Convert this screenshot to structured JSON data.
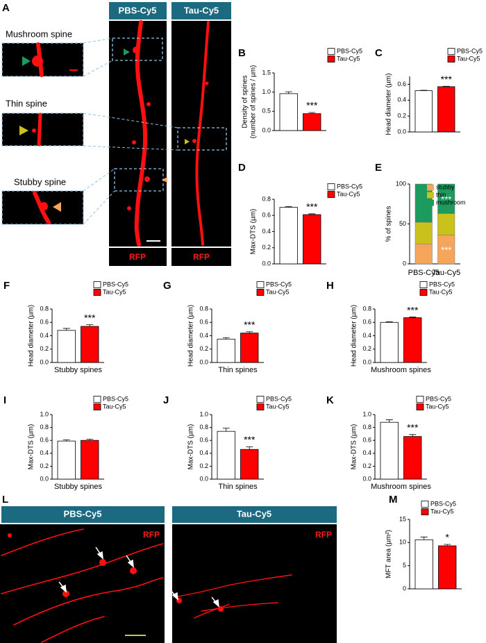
{
  "figure": {
    "panel_letters": [
      "A",
      "B",
      "C",
      "D",
      "E",
      "F",
      "G",
      "H",
      "I",
      "J",
      "K",
      "L",
      "M"
    ],
    "panel_a": {
      "headers": [
        "PBS-Cy5",
        "Tau-Cy5"
      ],
      "channel_labels": [
        "RFP",
        "RFP"
      ],
      "inset_labels": [
        "Mushroom spine",
        "Thin spine",
        "Stubby spine"
      ]
    },
    "panel_l": {
      "headers": [
        "PBS-Cy5",
        "Tau-Cy5"
      ],
      "channel_labels": [
        "RFP",
        "RFP"
      ]
    }
  },
  "chart_data": [
    {
      "type": "bar",
      "y_label": [
        "Density of spines",
        "(number of spines / µm)"
      ],
      "categories": [
        "PBS-Cy5",
        "Tau-Cy5"
      ],
      "colors": [
        "#ffffff",
        "#ff0000"
      ],
      "values": [
        0.96,
        0.44
      ],
      "errors": [
        0.05,
        0.03
      ],
      "annotation": "***",
      "ylim": [
        0,
        1.5
      ],
      "yticks": [
        {
          "value": 0,
          "label": "0.0"
        },
        {
          "value": 0.5,
          "label": "0.5"
        },
        {
          "value": 1,
          "label": "1.0"
        },
        {
          "value": 1.5,
          "label": "1.5"
        }
      ]
    },
    {
      "type": "bar",
      "y_label": [
        "Head diameter (µm)"
      ],
      "categories": [
        "PBS-Cy5",
        "Tau-Cy5"
      ],
      "colors": [
        "#ffffff",
        "#ff0000"
      ],
      "values": [
        0.52,
        0.57
      ],
      "errors": [
        0.005,
        0.005
      ],
      "annotation": "***",
      "ylim": [
        0,
        0.7
      ],
      "yticks": [
        {
          "value": 0,
          "label": "0.0"
        },
        0.2,
        0.4,
        0.6
      ]
    },
    {
      "type": "bar",
      "y_label": [
        "Max-DTS (µm)"
      ],
      "categories": [
        "PBS-Cy5",
        "Tau-Cy5"
      ],
      "colors": [
        "#ffffff",
        "#ff0000"
      ],
      "values": [
        0.7,
        0.61
      ],
      "errors": [
        0.01,
        0.01
      ],
      "annotation": "***",
      "ylim": [
        0,
        0.8
      ],
      "yticks": [
        {
          "value": 0,
          "label": "0.0"
        },
        0.2,
        0.4,
        0.6,
        0.8
      ]
    },
    {
      "type": "stacked_bar",
      "y_label": [
        "% of spines"
      ],
      "categories": [
        "PBS-Cy5",
        "Tau-Cy5"
      ],
      "series": [
        {
          "name": "stubby",
          "color": "#f5a65b",
          "values": [
            25,
            36
          ],
          "annotation": "***"
        },
        {
          "name": "thin",
          "color": "#c9c21c",
          "values": [
            27,
            27
          ]
        },
        {
          "name": "mushroom",
          "color": "#1d9a5e",
          "values": [
            48,
            37
          ],
          "annotation": "***"
        }
      ],
      "ylim": [
        0,
        100
      ],
      "yticks": [
        0,
        50,
        100
      ]
    },
    {
      "type": "bar",
      "y_label": [
        "Head diameter (µm)"
      ],
      "x_label": "Stubby spines",
      "categories": [
        "PBS-Cy5",
        "Tau-Cy5"
      ],
      "colors": [
        "#ffffff",
        "#ff0000"
      ],
      "values": [
        0.48,
        0.54
      ],
      "errors": [
        0.03,
        0.025
      ],
      "annotation": "***",
      "ylim": [
        0,
        0.8
      ],
      "yticks": [
        {
          "value": 0,
          "label": "0.0"
        },
        0.2,
        0.4,
        0.6,
        0.8
      ]
    },
    {
      "type": "bar",
      "y_label": [
        "Head diameter (µm)"
      ],
      "x_label": "Thin spines",
      "categories": [
        "PBS-Cy5",
        "Tau-Cy5"
      ],
      "colors": [
        "#ffffff",
        "#ff0000"
      ],
      "values": [
        0.35,
        0.44
      ],
      "errors": [
        0.02,
        0.02
      ],
      "annotation": "***",
      "ylim": [
        0,
        0.8
      ],
      "yticks": [
        {
          "value": 0,
          "label": "0.0"
        },
        0.2,
        0.4,
        0.6,
        0.8
      ]
    },
    {
      "type": "bar",
      "y_label": [
        "Head diameter (µm)"
      ],
      "x_label": "Mushroom spines",
      "categories": [
        "PBS-Cy5",
        "Tau-Cy5"
      ],
      "colors": [
        "#ffffff",
        "#ff0000"
      ],
      "values": [
        0.6,
        0.67
      ],
      "errors": [
        0.01,
        0.01
      ],
      "annotation": "***",
      "ylim": [
        0,
        0.8
      ],
      "yticks": [
        {
          "value": 0,
          "label": "0.0"
        },
        0.2,
        0.4,
        0.6,
        0.8
      ]
    },
    {
      "type": "bar",
      "y_label": [
        "Max-DTS (µm)"
      ],
      "x_label": "Stubby spines",
      "categories": [
        "PBS-Cy5",
        "Tau-Cy5"
      ],
      "colors": [
        "#ffffff",
        "#ff0000"
      ],
      "values": [
        0.59,
        0.6
      ],
      "errors": [
        0.02,
        0.02
      ],
      "ylim": [
        0,
        1
      ],
      "yticks": [
        {
          "value": 0,
          "label": "0.0"
        },
        0.2,
        0.4,
        0.6,
        0.8,
        {
          "value": 1,
          "label": "1.0"
        }
      ]
    },
    {
      "type": "bar",
      "y_label": [
        "Max-DTS (µm)"
      ],
      "x_label": "Thin spines",
      "categories": [
        "PBS-Cy5",
        "Tau-Cy5"
      ],
      "colors": [
        "#ffffff",
        "#ff0000"
      ],
      "values": [
        0.74,
        0.46
      ],
      "errors": [
        0.05,
        0.04
      ],
      "annotation": "***",
      "ylim": [
        0,
        1
      ],
      "yticks": [
        {
          "value": 0,
          "label": "0.0"
        },
        0.2,
        0.4,
        0.6,
        0.8,
        {
          "value": 1,
          "label": "1.0"
        }
      ]
    },
    {
      "type": "bar",
      "y_label": [
        "Max-DTS (µm)"
      ],
      "x_label": "Mushroom spines",
      "categories": [
        "PBS-Cy5",
        "Tau-Cy5"
      ],
      "colors": [
        "#ffffff",
        "#ff0000"
      ],
      "values": [
        0.88,
        0.66
      ],
      "errors": [
        0.04,
        0.03
      ],
      "annotation": "***",
      "ylim": [
        0,
        1
      ],
      "yticks": [
        {
          "value": 0,
          "label": "0.0"
        },
        0.2,
        0.4,
        0.6,
        0.8,
        {
          "value": 1,
          "label": "1.0"
        }
      ]
    },
    {
      "type": "bar",
      "y_label": [
        "MFT area (µm²)"
      ],
      "categories": [
        "PBS-Cy5",
        "Tau-Cy5"
      ],
      "colors": [
        "#ffffff",
        "#ff0000"
      ],
      "values": [
        10.6,
        9.3
      ],
      "errors": [
        0.6,
        0.3
      ],
      "annotation": "*",
      "ylim": [
        0,
        15
      ],
      "yticks": [
        0,
        5,
        10,
        15
      ]
    }
  ]
}
